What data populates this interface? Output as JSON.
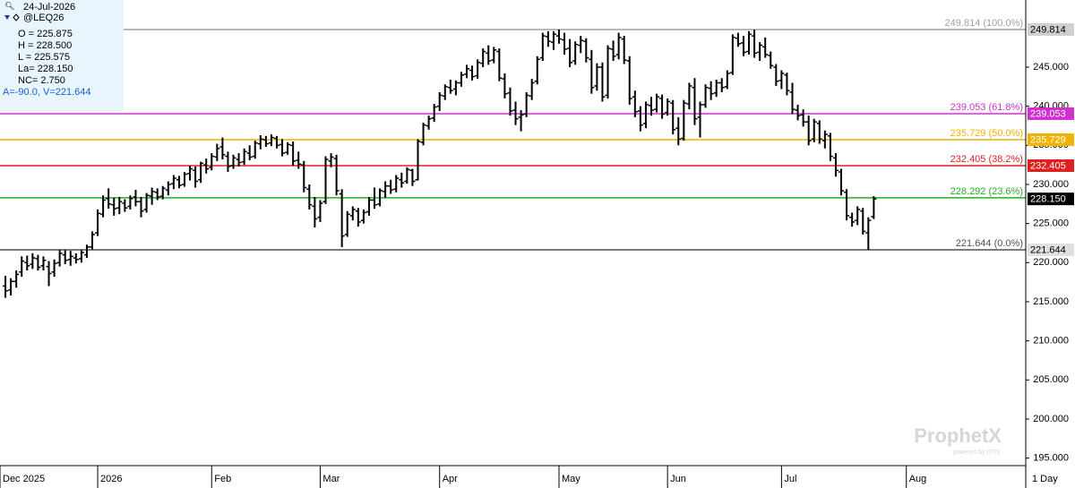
{
  "chart_data": {
    "type": "ohlc",
    "info": {
      "date": "24-Jul-2026",
      "symbol": "@LEQ26",
      "lines": [
        "O = 225.875",
        "H = 228.500",
        "L = 225.575",
        "La= 228.150",
        "NC= 2.750"
      ],
      "cursor": "A=-90.0, V=221.644"
    },
    "watermark": "ProphetX",
    "watermark_sub": "powered by DTN",
    "interval": "1 Day",
    "color": "#000000",
    "xlim": [
      -1,
      188
    ],
    "xticks": [
      {
        "value": -1,
        "label": "Dec 2025"
      },
      {
        "value": 17,
        "label": "2026"
      },
      {
        "value": 38,
        "label": "Feb"
      },
      {
        "value": 58,
        "label": "Mar"
      },
      {
        "value": 80,
        "label": "Apr"
      },
      {
        "value": 102,
        "label": "May"
      },
      {
        "value": 122,
        "label": "Jun"
      },
      {
        "value": 143,
        "label": "Jul"
      },
      {
        "value": 166,
        "label": "Aug"
      }
    ],
    "ylim": [
      194.04,
      253.59
    ],
    "yticks": [
      {
        "value": 195,
        "label": "195.000"
      },
      {
        "value": 200,
        "label": "200.000"
      },
      {
        "value": 205,
        "label": "205.000"
      },
      {
        "value": 210,
        "label": "210.000"
      },
      {
        "value": 215,
        "label": "215.000"
      },
      {
        "value": 220,
        "label": "220.000"
      },
      {
        "value": 225,
        "label": "225.000"
      },
      {
        "value": 230,
        "label": "230.000"
      },
      {
        "value": 235,
        "label": "235.000"
      },
      {
        "value": 240,
        "label": "240.000"
      },
      {
        "value": 245,
        "label": "245.000"
      }
    ],
    "fib_levels": [
      {
        "value": 249.814,
        "label": "249.814 (100.0%)",
        "color": "#a0a0a0",
        "tag_bg": "#d0d0d0",
        "tag_fg": "#000000"
      },
      {
        "value": 239.053,
        "label": "239.053 (61.8%)",
        "color": "#d030d0",
        "tag_bg": "#d030d0",
        "tag_fg": "#ffffff"
      },
      {
        "value": 235.729,
        "label": "235.729 (50.0%)",
        "color": "#f0b400",
        "tag_bg": "#f0b400",
        "tag_fg": "#ffffff"
      },
      {
        "value": 232.405,
        "label": "232.405 (38.2%)",
        "color": "#e02020",
        "tag_bg": "#e02020",
        "tag_fg": "#ffffff"
      },
      {
        "value": 228.292,
        "label": "228.292 (23.6%)",
        "color": "#20b020",
        "tag_bg": null,
        "tag_fg": null
      },
      {
        "value": 221.644,
        "label": "221.644 (0.0%)",
        "color": "#505050",
        "tag_bg": "#e0e0e0",
        "tag_fg": "#000000"
      }
    ],
    "last": {
      "value": 228.15,
      "label": "228.150"
    },
    "open": [
      217.0,
      216.5,
      217.6,
      218.8,
      220.0,
      219.8,
      220.5,
      219.6,
      219.5,
      218.8,
      220.0,
      221.0,
      220.4,
      220.6,
      220.5,
      221.0,
      222.0,
      223.8,
      226.2,
      228.2,
      227.4,
      227.0,
      227.6,
      227.2,
      228.4,
      227.8,
      226.8,
      228.5,
      229.0,
      228.5,
      229.3,
      230.1,
      230.6,
      230.0,
      231.4,
      231.8,
      230.6,
      232.5,
      232.2,
      233.5,
      234.8,
      233.6,
      232.4,
      233.2,
      232.9,
      234.0,
      233.6,
      235.2,
      235.7,
      235.3,
      235.9,
      235.1,
      234.1,
      235.0,
      233.1,
      232.5,
      229.4,
      227.2,
      225.8,
      227.8,
      233.0,
      233.3,
      228.8,
      223.6,
      226.0,
      226.6,
      225.4,
      226.5,
      228.0,
      227.5,
      229.1,
      229.8,
      229.4,
      230.6,
      230.4,
      231.8,
      230.6,
      235.4,
      237.5,
      238.5,
      240.0,
      241.3,
      242.4,
      242.2,
      243.0,
      244.1,
      244.6,
      243.9,
      245.5,
      246.8,
      245.9,
      247.0,
      243.5,
      241.7,
      239.5,
      238.6,
      239.0,
      241.3,
      243.2,
      246.2,
      248.9,
      248.2,
      249.0,
      248.5,
      247.4,
      245.8,
      247.8,
      248.3,
      246.0,
      242.6,
      245.0,
      241.4,
      247.3,
      246.6,
      248.6,
      245.8,
      241.2,
      239.4,
      237.8,
      240.1,
      239.6,
      241.0,
      239.2,
      240.4,
      237.2,
      235.9,
      240.3,
      242.4,
      238.6,
      240.2,
      242.3,
      241.7,
      243.0,
      242.5,
      244.3,
      248.7,
      248.1,
      247.0,
      249.0,
      246.9,
      247.6,
      246.5,
      245.0,
      243.3,
      244.0,
      241.8,
      239.5,
      238.9,
      238.0,
      235.8,
      237.8,
      235.6,
      236.2,
      233.4,
      231.6,
      229.0,
      225.8,
      225.4,
      226.6,
      223.8,
      225.875
    ],
    "high": [
      218.3,
      218.0,
      219.0,
      220.8,
      220.9,
      221.2,
      221.0,
      220.8,
      220.2,
      220.4,
      221.6,
      221.6,
      221.5,
      221.2,
      221.6,
      222.3,
      224.0,
      226.8,
      228.6,
      229.5,
      228.3,
      228.4,
      228.1,
      228.6,
      229.3,
      228.4,
      228.9,
      229.6,
      229.5,
      229.8,
      230.4,
      231.2,
      231.1,
      231.6,
      232.4,
      232.3,
      232.9,
      233.3,
      234.0,
      235.2,
      236.0,
      234.2,
      233.8,
      234.0,
      234.6,
      235.0,
      235.6,
      236.3,
      236.2,
      236.4,
      236.2,
      235.8,
      235.4,
      235.5,
      234.2,
      233.0,
      230.0,
      228.4,
      228.0,
      233.6,
      234.0,
      233.8,
      229.4,
      226.6,
      227.2,
      227.0,
      226.8,
      228.4,
      229.6,
      229.5,
      230.4,
      230.6,
      231.2,
      231.5,
      232.2,
      232.0,
      235.8,
      237.9,
      238.8,
      240.3,
      241.8,
      242.8,
      243.4,
      243.3,
      244.4,
      245.3,
      245.2,
      246.0,
      247.4,
      247.8,
      247.6,
      247.4,
      244.2,
      242.4,
      240.6,
      239.5,
      241.8,
      243.5,
      246.4,
      249.4,
      249.6,
      249.6,
      249.814,
      249.4,
      248.6,
      248.3,
      249.0,
      248.7,
      247.2,
      245.5,
      245.6,
      247.8,
      248.4,
      249.4,
      249.0,
      246.4,
      242.0,
      240.0,
      240.6,
      241.2,
      241.6,
      241.5,
      241.0,
      240.8,
      238.6,
      240.8,
      243.0,
      243.6,
      240.6,
      242.8,
      243.2,
      243.4,
      243.6,
      244.6,
      249.2,
      249.4,
      249.0,
      249.6,
      249.8,
      248.2,
      248.8,
      247.0,
      245.4,
      244.6,
      244.3,
      243.0,
      240.2,
      239.6,
      238.8,
      238.4,
      238.2,
      236.9,
      236.6,
      234.0,
      232.0,
      229.4,
      226.4,
      227.2,
      227.0,
      225.8,
      228.5
    ],
    "low": [
      215.5,
      215.8,
      216.8,
      218.2,
      219.0,
      219.2,
      219.0,
      219.0,
      217.0,
      218.2,
      219.5,
      219.8,
      219.6,
      219.9,
      220.0,
      220.6,
      221.7,
      223.4,
      225.8,
      226.9,
      226.0,
      226.2,
      226.5,
      226.8,
      227.2,
      225.8,
      226.4,
      227.4,
      228.0,
      228.1,
      228.6,
      229.4,
      229.5,
      229.7,
      230.5,
      229.6,
      230.2,
      231.4,
      231.8,
      233.0,
      233.2,
      231.6,
      232.0,
      232.3,
      232.5,
      233.1,
      233.3,
      234.5,
      234.8,
      234.9,
      234.6,
      233.6,
      233.8,
      232.4,
      232.0,
      229.0,
      226.8,
      224.5,
      225.2,
      227.5,
      232.2,
      228.6,
      222.0,
      223.3,
      225.4,
      224.6,
      225.0,
      226.0,
      226.9,
      227.2,
      228.3,
      228.8,
      229.0,
      229.6,
      230.1,
      229.8,
      230.5,
      235.0,
      237.0,
      238.0,
      239.4,
      240.8,
      241.6,
      241.4,
      242.5,
      243.6,
      243.3,
      243.5,
      245.0,
      245.3,
      245.5,
      243.2,
      241.0,
      238.8,
      237.6,
      236.8,
      238.6,
      240.8,
      242.8,
      245.8,
      247.6,
      247.2,
      248.0,
      246.6,
      245.0,
      245.3,
      246.8,
      245.6,
      241.6,
      242.0,
      240.6,
      241.0,
      245.8,
      246.0,
      245.4,
      240.2,
      238.6,
      236.8,
      237.2,
      238.8,
      239.2,
      238.4,
      238.8,
      236.4,
      235.0,
      235.6,
      239.6,
      237.6,
      236.0,
      239.8,
      240.8,
      241.2,
      241.8,
      242.2,
      244.0,
      247.6,
      246.4,
      246.6,
      246.2,
      245.8,
      246.2,
      244.8,
      242.6,
      242.2,
      241.4,
      239.0,
      238.2,
      237.4,
      235.0,
      235.4,
      235.2,
      234.6,
      233.0,
      231.0,
      228.6,
      225.4,
      224.6,
      224.8,
      223.6,
      221.644,
      225.575
    ],
    "close": [
      216.4,
      217.6,
      218.5,
      220.2,
      219.6,
      220.6,
      219.4,
      220.3,
      218.6,
      219.9,
      221.2,
      220.3,
      220.8,
      220.4,
      221.3,
      222.0,
      223.6,
      226.3,
      228.0,
      227.5,
      226.9,
      227.8,
      227.0,
      228.2,
      227.8,
      226.6,
      228.6,
      229.1,
      228.4,
      229.5,
      230.0,
      230.8,
      229.9,
      231.3,
      232.0,
      230.4,
      232.7,
      232.0,
      233.6,
      234.6,
      233.8,
      232.3,
      233.4,
      232.8,
      234.2,
      233.5,
      235.3,
      235.8,
      235.2,
      236.0,
      235.0,
      234.0,
      235.1,
      233.0,
      232.6,
      229.6,
      227.4,
      225.6,
      227.6,
      233.2,
      233.5,
      229.2,
      223.4,
      226.2,
      226.8,
      225.2,
      226.4,
      228.0,
      227.4,
      229.2,
      229.8,
      229.3,
      230.8,
      230.2,
      231.9,
      230.4,
      235.5,
      237.6,
      238.4,
      239.9,
      241.4,
      242.5,
      242.0,
      243.0,
      244.0,
      244.8,
      243.8,
      245.6,
      247.0,
      245.8,
      247.2,
      243.6,
      241.6,
      239.4,
      238.4,
      238.9,
      241.4,
      243.0,
      246.0,
      249.0,
      248.3,
      249.2,
      248.6,
      247.3,
      245.6,
      247.9,
      248.4,
      246.2,
      242.4,
      245.0,
      241.2,
      247.4,
      246.4,
      248.8,
      245.9,
      241.0,
      239.3,
      237.6,
      240.2,
      239.5,
      241.2,
      239.0,
      240.6,
      237.0,
      235.8,
      240.4,
      242.6,
      238.4,
      240.2,
      242.4,
      241.6,
      243.0,
      242.4,
      244.2,
      248.8,
      248.0,
      246.9,
      249.2,
      246.8,
      247.8,
      246.6,
      245.2,
      243.2,
      244.2,
      242.0,
      239.6,
      238.8,
      238.0,
      235.6,
      238.0,
      235.8,
      236.4,
      233.6,
      231.8,
      229.2,
      226.0,
      225.2,
      226.8,
      224.0,
      225.4,
      228.15
    ]
  }
}
